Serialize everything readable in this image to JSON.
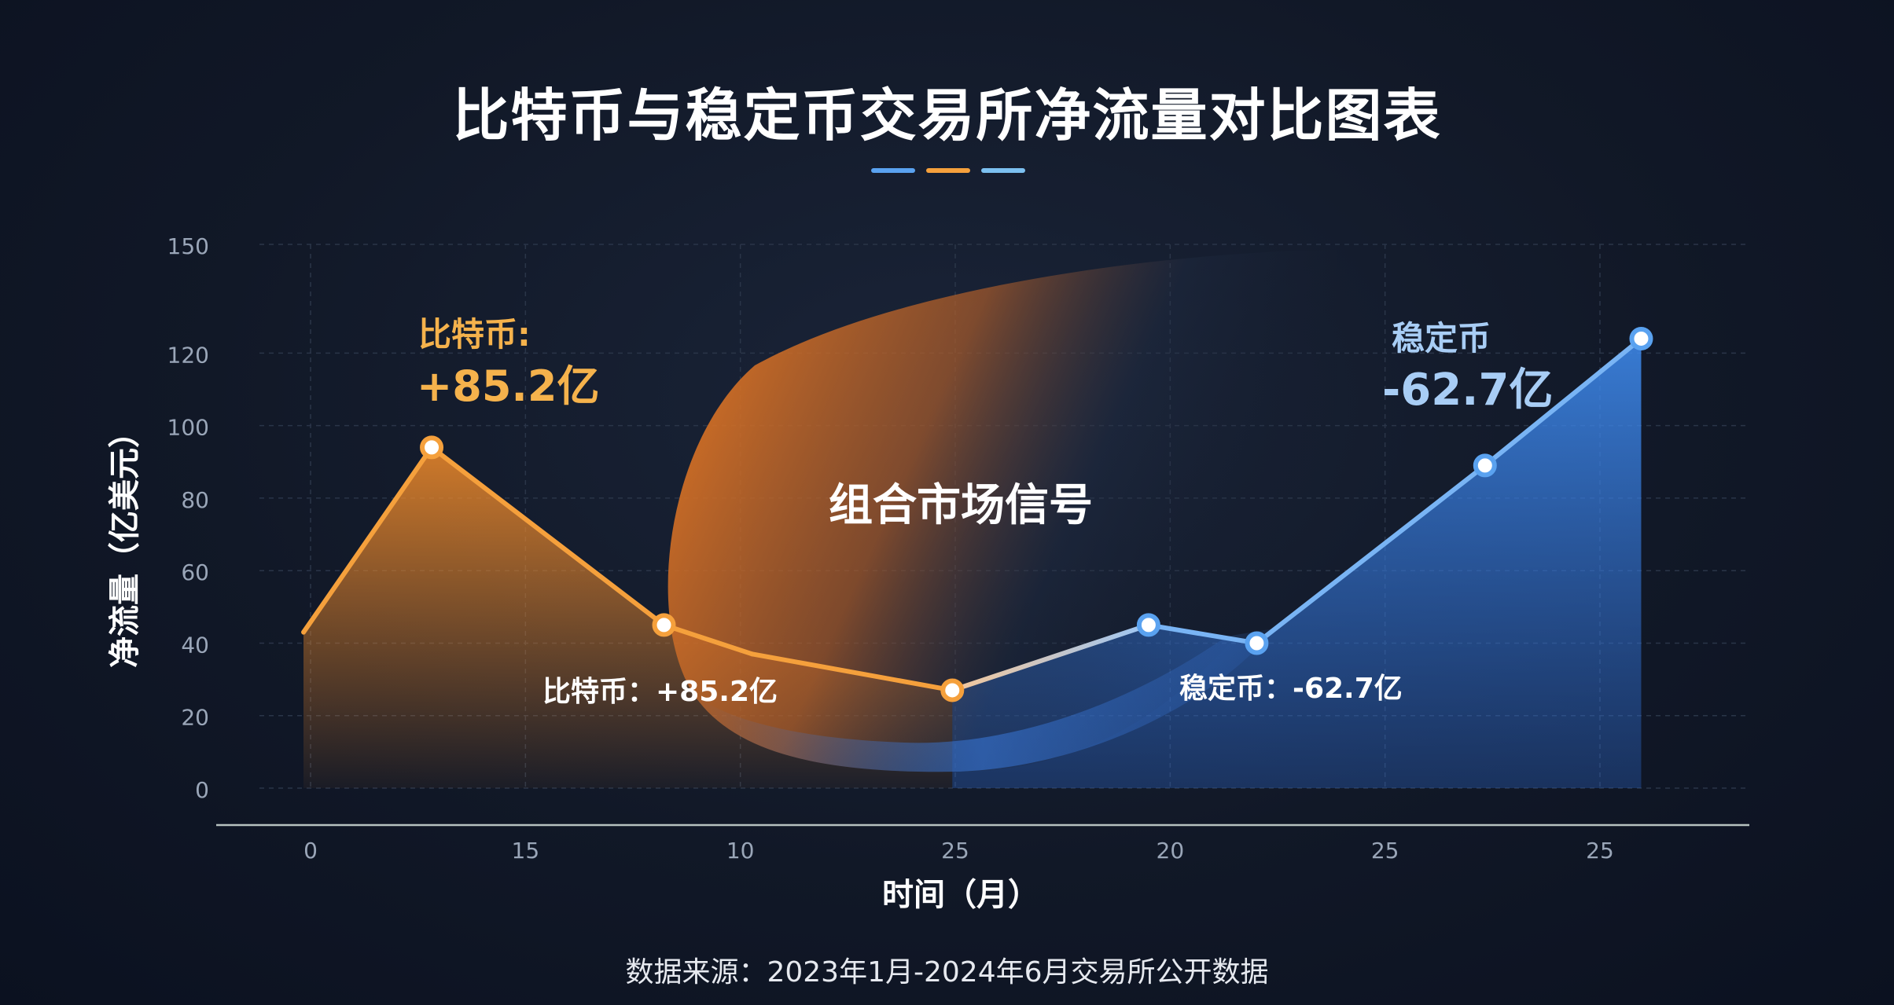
{
  "title": "比特币与稳定币交易所净流量对比图表",
  "source": "数据来源：2023年1月-2024年6月交易所公开数据",
  "colors": {
    "background": "#111827",
    "bitcoin": "#f5a03c",
    "stablecoin": "#5aa2f0",
    "grid": "#2a3548",
    "axis": "#9aa6b8"
  },
  "chart_data": {
    "type": "area",
    "xlabel": "时间（月）",
    "ylabel": "净流量（亿美元）",
    "ylim": [
      0,
      150
    ],
    "yticks": [
      0,
      20,
      40,
      60,
      80,
      100,
      120,
      150
    ],
    "xtick_labels": [
      "0",
      "15",
      "10",
      "25",
      "20",
      "25",
      "25"
    ],
    "grid": true,
    "series": [
      {
        "name": "比特币",
        "color": "#f5a03c",
        "points": [
          {
            "x": -1.2,
            "y": 43,
            "marker": false
          },
          {
            "x": 2.0,
            "y": 94,
            "marker": true
          },
          {
            "x": 7.8,
            "y": 45,
            "marker": true
          },
          {
            "x": 10.0,
            "y": 37,
            "marker": false
          },
          {
            "x": 15.0,
            "y": 27,
            "marker": true
          }
        ]
      },
      {
        "name": "稳定币",
        "color": "#5aa2f0",
        "points": [
          {
            "x": 15.0,
            "y": 27,
            "marker": false
          },
          {
            "x": 19.9,
            "y": 45,
            "marker": true
          },
          {
            "x": 22.6,
            "y": 40,
            "marker": true
          },
          {
            "x": 28.3,
            "y": 89,
            "marker": true
          },
          {
            "x": 32.2,
            "y": 124,
            "marker": true
          }
        ]
      }
    ],
    "annotations": {
      "btc_big_label": "比特币:",
      "btc_big_value": "+85.2亿",
      "stable_big_label": "稳定币",
      "stable_big_value": "-62.7亿",
      "btc_small": "比特币：+85.2亿",
      "stable_small": "稳定币：-62.7亿",
      "center": "组合市场信号"
    }
  }
}
